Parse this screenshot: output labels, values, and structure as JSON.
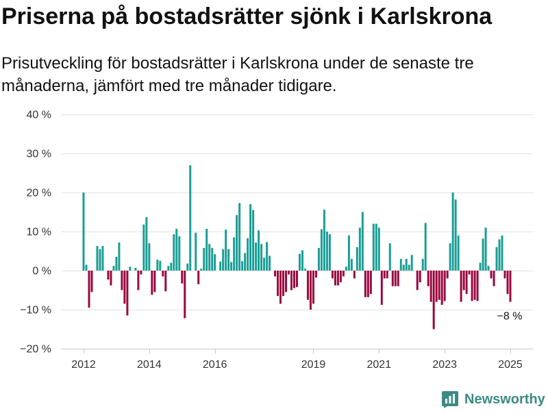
{
  "colors": {
    "positive_bar": "#1a9e96",
    "negative_bar": "#99083f",
    "text": "#111111",
    "axis_text": "#333333",
    "grid": "#e2e2e2",
    "axis": "#c4c4c4",
    "brand": "#3c8a85"
  },
  "chart_data": {
    "type": "bar",
    "title": "Priserna på bostadsrätter sjönk i Karlskrona",
    "subtitle": "Prisutveckling för bostadsrätter i Karlskrona under de senaste tre månaderna, jämfört med tre månader tidigare.",
    "x": [
      "2012-01",
      "2012-02",
      "2012-03",
      "2012-04",
      "2012-05",
      "2012-06",
      "2012-07",
      "2012-08",
      "2012-09",
      "2012-10",
      "2012-11",
      "2012-12",
      "2013-01",
      "2013-02",
      "2013-03",
      "2013-04",
      "2013-05",
      "2013-06",
      "2013-07",
      "2013-08",
      "2013-09",
      "2013-10",
      "2013-11",
      "2013-12",
      "2014-01",
      "2014-02",
      "2014-03",
      "2014-04",
      "2014-05",
      "2014-06",
      "2014-07",
      "2014-08",
      "2014-09",
      "2014-10",
      "2014-11",
      "2014-12",
      "2015-01",
      "2015-02",
      "2015-03",
      "2015-04",
      "2015-05",
      "2015-06",
      "2015-07",
      "2015-08",
      "2015-09",
      "2015-10",
      "2015-11",
      "2015-12",
      "2016-01",
      "2016-02",
      "2016-03",
      "2016-04",
      "2016-05",
      "2016-06",
      "2016-07",
      "2016-08",
      "2016-09",
      "2016-10",
      "2016-11",
      "2016-12",
      "2017-01",
      "2017-02",
      "2017-03",
      "2017-04",
      "2017-05",
      "2017-06",
      "2017-07",
      "2017-08",
      "2017-09",
      "2017-10",
      "2017-11",
      "2017-12",
      "2018-01",
      "2018-02",
      "2018-03",
      "2018-04",
      "2018-05",
      "2018-06",
      "2018-07",
      "2018-08",
      "2018-09",
      "2018-10",
      "2018-11",
      "2018-12",
      "2019-01",
      "2019-02",
      "2019-03",
      "2019-04",
      "2019-05",
      "2019-06",
      "2019-07",
      "2019-08",
      "2019-09",
      "2019-10",
      "2019-11",
      "2019-12",
      "2020-01",
      "2020-02",
      "2020-03",
      "2020-04",
      "2020-05",
      "2020-06",
      "2020-07",
      "2020-08",
      "2020-09",
      "2020-10",
      "2020-11",
      "2020-12",
      "2021-01",
      "2021-02",
      "2021-03",
      "2021-04",
      "2021-05",
      "2021-06",
      "2021-07",
      "2021-08",
      "2021-09",
      "2021-10",
      "2021-11",
      "2021-12",
      "2022-01",
      "2022-02",
      "2022-03",
      "2022-04",
      "2022-05",
      "2022-06",
      "2022-07",
      "2022-08",
      "2022-09",
      "2022-10",
      "2022-11",
      "2022-12",
      "2023-01",
      "2023-02",
      "2023-03",
      "2023-04",
      "2023-05",
      "2023-06",
      "2023-07",
      "2023-08",
      "2023-09",
      "2023-10",
      "2023-11",
      "2023-12",
      "2024-01",
      "2024-02",
      "2024-03",
      "2024-04",
      "2024-05",
      "2024-06",
      "2024-07",
      "2024-08",
      "2024-09",
      "2024-10",
      "2024-11",
      "2024-12",
      "2025-01"
    ],
    "values": [
      20,
      1.5,
      -9.5,
      -5.5,
      0,
      6.3,
      5.5,
      6.3,
      0,
      -2.3,
      -3.8,
      1.2,
      3.5,
      7.2,
      -5,
      -8.5,
      -11.5,
      1,
      0,
      0.7,
      -5,
      -1,
      11.8,
      13.7,
      7,
      -6.2,
      -5.5,
      2.8,
      2.5,
      -1.5,
      -5.3,
      1.2,
      2,
      9.3,
      10.7,
      8.8,
      -3.3,
      -12.2,
      1.8,
      27,
      0,
      9.7,
      -3.5,
      0.5,
      5.8,
      10.7,
      6.8,
      5.8,
      4.2,
      0,
      2.3,
      5.5,
      10.5,
      5.5,
      2.2,
      8.5,
      14.2,
      17.3,
      2.4,
      4.5,
      8.3,
      17,
      15.5,
      7.2,
      10.3,
      6.8,
      3.3,
      7.3,
      3.8,
      0,
      -1.5,
      -6.5,
      -8.5,
      -6.5,
      -5.5,
      -1,
      -5,
      -4.5,
      -4.2,
      4.3,
      5.2,
      0.5,
      -7.5,
      -10,
      -8.5,
      -1.8,
      5.8,
      10.6,
      15.6,
      10,
      9.3,
      -2,
      -3.8,
      -3.8,
      -3,
      -1.5,
      1,
      9,
      3,
      -2,
      6,
      11,
      15,
      -6.8,
      -6.8,
      -6,
      12,
      12,
      11,
      -8.8,
      -2,
      -2,
      7,
      -4,
      -4,
      -4,
      3,
      1.5,
      3,
      1.5,
      4,
      0,
      -5,
      -3,
      3,
      12.2,
      -4,
      -8,
      -15,
      -8,
      -7.5,
      -8.8,
      -7.8,
      -2,
      7,
      20,
      18.2,
      9,
      -8,
      -5,
      -6,
      -1,
      -7.8,
      -7.5,
      -7.8,
      2,
      8.2,
      11,
      1.2,
      -2,
      -4,
      6,
      8,
      9,
      -2,
      -6,
      -8
    ],
    "ylim": [
      -20,
      40
    ],
    "yticks": [
      40,
      30,
      20,
      10,
      0,
      -10,
      -20
    ],
    "ytick_labels": [
      "40 %",
      "30 %",
      "20 %",
      "10 %",
      "0 %",
      "−10 %",
      "−20 %"
    ],
    "xticks": [
      "2012-01",
      "2014-01",
      "2016-01",
      "2019-01",
      "2021-01",
      "2023-01",
      "2025-01"
    ],
    "xtick_labels": [
      "2012",
      "2014",
      "2016",
      "2019",
      "2021",
      "2023",
      "2025"
    ],
    "annotations": [
      {
        "x": "2025-01",
        "text": "−8 %"
      }
    ],
    "grid": true,
    "legend": "none"
  },
  "brand": {
    "name": "Newsworthy",
    "icon": "newsworthy-logo-icon"
  }
}
